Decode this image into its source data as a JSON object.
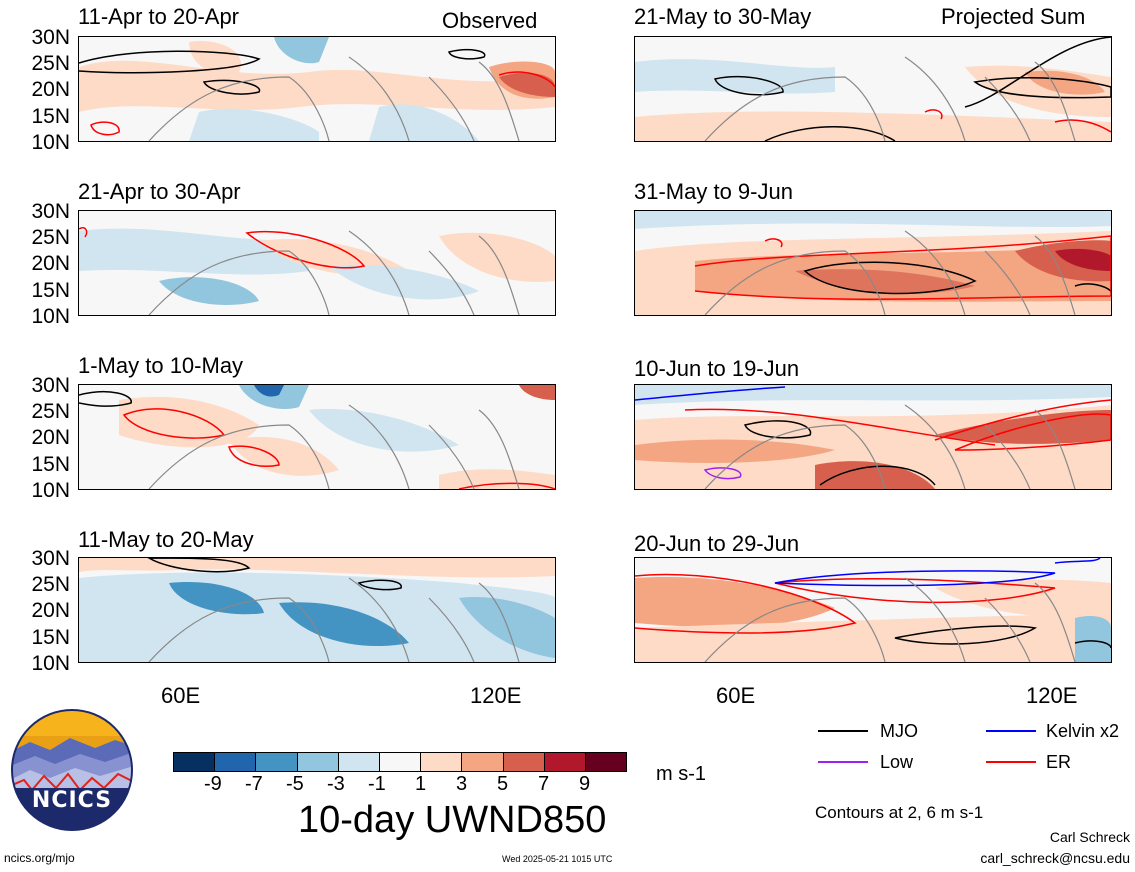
{
  "column_labels": {
    "left": "Observed",
    "right": "Projected Sum"
  },
  "lat_labels": [
    "30N",
    "25N",
    "20N",
    "15N",
    "10N"
  ],
  "lon_labels": [
    "60E",
    "120E"
  ],
  "panels": {
    "left": [
      {
        "title": "11-Apr to 20-Apr"
      },
      {
        "title": "21-Apr to 30-Apr"
      },
      {
        "title": "1-May to 10-May"
      },
      {
        "title": "11-May to 20-May"
      }
    ],
    "right": [
      {
        "title": "21-May to 30-May"
      },
      {
        "title": "31-May to 9-Jun"
      },
      {
        "title": "10-Jun to 19-Jun"
      },
      {
        "title": "20-Jun to 29-Jun"
      }
    ]
  },
  "colorbar": {
    "colors": [
      "#053061",
      "#2166ac",
      "#4393c3",
      "#92c5de",
      "#d1e5f0",
      "#f7f7f7",
      "#fddbc7",
      "#f4a582",
      "#d6604d",
      "#b2182b",
      "#67001f"
    ],
    "ticks": [
      "-9",
      "-7",
      "-5",
      "-3",
      "-1",
      "1",
      "3",
      "5",
      "7",
      "9"
    ],
    "units": "m s-1",
    "title": "10-day UWND850"
  },
  "legend": {
    "items": [
      {
        "label": "MJO",
        "color": "#000000"
      },
      {
        "label": "Kelvin x2",
        "color": "#0000ff"
      },
      {
        "label": "Low",
        "color": "#a020f0"
      },
      {
        "label": "ER",
        "color": "#ff0000"
      }
    ],
    "contours_note": "Contours at 2, 6 m s-1"
  },
  "logo": {
    "text": "NCICS"
  },
  "footer": {
    "url": "ncics.org/mjo",
    "timestamp": "Wed 2025-05-21 1015 UTC",
    "author": "Carl Schreck",
    "email": "carl_schreck@ncsu.edu"
  }
}
